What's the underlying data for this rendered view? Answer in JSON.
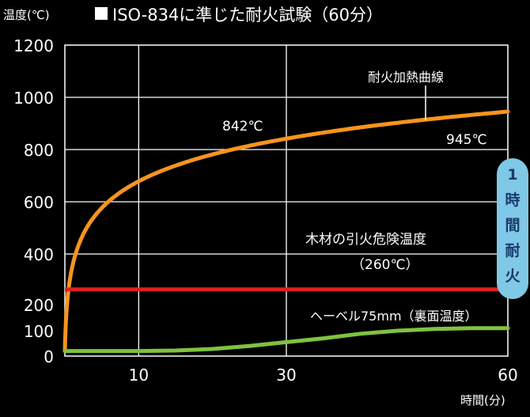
{
  "chart_data": {
    "type": "line",
    "title": "ISO-834に準じた耐火試験（60分）",
    "ylabel": "温度(℃)",
    "xlabel": "時間(分)",
    "xlim": [
      0,
      60
    ],
    "ylim": [
      0,
      1200
    ],
    "x_ticks": [
      10,
      30,
      60
    ],
    "y_ticks": [
      0,
      100,
      200,
      400,
      600,
      800,
      1000,
      1200
    ],
    "grid": true,
    "series": [
      {
        "name": "耐火加熱曲線",
        "color": "#f7941d",
        "x": [
          0,
          0.5,
          1,
          2,
          3,
          4,
          5,
          7.5,
          10,
          15,
          20,
          25,
          30,
          35,
          40,
          45,
          50,
          55,
          60
        ],
        "y": [
          20,
          261,
          349,
          445,
          502,
          544,
          576,
          630,
          678,
          739,
          781,
          815,
          842,
          865,
          885,
          902,
          918,
          932,
          945
        ]
      },
      {
        "name": "木材の引火危険温度（260℃）",
        "color": "#e02020",
        "x": [
          0,
          60
        ],
        "y": [
          260,
          260
        ]
      },
      {
        "name": "ヘーベル75mm（裏面温度）",
        "color": "#7fc241",
        "x": [
          0,
          5,
          10,
          15,
          20,
          25,
          30,
          35,
          40,
          45,
          50,
          55,
          60
        ],
        "y": [
          20,
          20,
          20,
          22,
          28,
          40,
          55,
          70,
          88,
          100,
          107,
          110,
          110
        ]
      }
    ],
    "annotations": {
      "orange_label": "耐火加熱曲線",
      "point_30": "842℃",
      "point_60": "945℃",
      "red_label_1": "木材の引火危険温度",
      "red_label_2": "（260℃）",
      "green_label": "ヘーベル75mm（裏面温度）",
      "badge": [
        "1",
        "時",
        "間",
        "耐",
        "火"
      ]
    },
    "colors": {
      "background": "#000000",
      "grid": "#ffffff",
      "badge_fill": "#7fc8e6",
      "badge_text": "#1a3a6e"
    }
  }
}
